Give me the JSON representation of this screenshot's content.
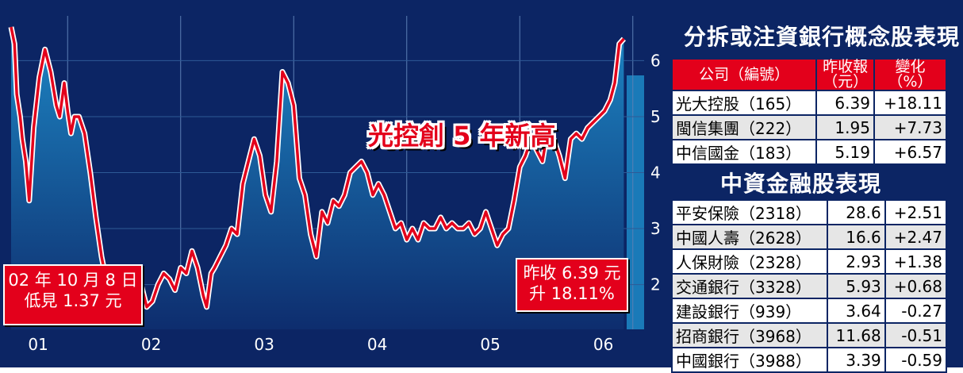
{
  "chart_data": {
    "type": "area",
    "x_ticks": [
      "01",
      "02",
      "03",
      "04",
      "05",
      "06"
    ],
    "y_ticks": [
      2,
      3,
      4,
      5,
      6
    ],
    "ylim": [
      1.2,
      6.8
    ],
    "series": [
      {
        "x": [
          2001.0,
          2001.03,
          2001.05,
          2001.08,
          2001.1,
          2001.13,
          2001.16,
          2001.2,
          2001.25,
          2001.3,
          2001.35,
          2001.4,
          2001.43,
          2001.47,
          2001.5,
          2001.53,
          2001.56,
          2001.6,
          2001.65,
          2001.7,
          2001.75,
          2001.8,
          2001.85,
          2001.9,
          2001.95,
          2002.0,
          2002.05,
          2002.1,
          2002.15,
          2002.2,
          2002.25,
          2002.3,
          2002.35,
          2002.4,
          2002.45,
          2002.5,
          2002.55,
          2002.6,
          2002.65,
          2002.7,
          2002.73,
          2002.77,
          2002.8,
          2002.85,
          2002.9,
          2002.95,
          2003.0,
          2003.05,
          2003.1,
          2003.15,
          2003.2,
          2003.25,
          2003.3,
          2003.35,
          2003.4,
          2003.45,
          2003.5,
          2003.55,
          2003.6,
          2003.65,
          2003.7,
          2003.75,
          2003.8,
          2003.85,
          2003.9,
          2003.95,
          2004.0,
          2004.05,
          2004.1,
          2004.15,
          2004.2,
          2004.25,
          2004.3,
          2004.35,
          2004.4,
          2004.45,
          2004.5,
          2004.55,
          2004.6,
          2004.65,
          2004.7,
          2004.75,
          2004.8,
          2004.85,
          2004.9,
          2004.95,
          2005.0,
          2005.05,
          2005.1,
          2005.15,
          2005.2,
          2005.25,
          2005.3,
          2005.35,
          2005.4,
          2005.45,
          2005.5,
          2005.55,
          2005.6,
          2005.65,
          2005.7,
          2005.75,
          2005.8,
          2005.85,
          2005.9,
          2005.95,
          2006.0,
          2006.05,
          2006.1,
          2006.15,
          2006.2,
          2006.25,
          2006.3,
          2006.34,
          2006.38,
          2006.42
        ],
        "values": [
          6.6,
          6.3,
          5.4,
          5.0,
          4.6,
          4.2,
          3.5,
          4.8,
          5.7,
          6.2,
          5.8,
          5.2,
          5.0,
          5.6,
          5.1,
          4.7,
          5.0,
          5.0,
          4.7,
          4.0,
          3.2,
          2.5,
          2.0,
          1.6,
          1.45,
          2.0,
          2.1,
          1.9,
          2.0,
          1.6,
          1.7,
          2.0,
          2.2,
          2.1,
          1.9,
          2.3,
          2.2,
          2.6,
          2.3,
          1.8,
          1.6,
          2.2,
          2.3,
          2.5,
          2.7,
          3.0,
          2.9,
          3.8,
          4.2,
          4.6,
          4.3,
          3.6,
          3.3,
          4.2,
          5.8,
          5.6,
          5.2,
          3.9,
          3.6,
          2.9,
          2.5,
          3.3,
          3.1,
          3.5,
          3.4,
          3.6,
          4.0,
          4.1,
          4.2,
          4.0,
          3.6,
          3.8,
          3.6,
          3.3,
          3.0,
          3.1,
          2.8,
          3.0,
          2.8,
          3.1,
          3.0,
          3.0,
          3.2,
          3.0,
          3.1,
          3.0,
          3.0,
          3.1,
          2.9,
          3.0,
          3.3,
          3.0,
          2.7,
          2.9,
          3.0,
          3.5,
          4.1,
          4.3,
          4.6,
          4.4,
          4.2,
          4.8,
          4.6,
          4.3,
          3.9,
          4.6,
          4.7,
          4.6,
          4.8,
          4.9,
          5.0,
          5.1,
          5.3,
          5.6,
          6.3,
          6.39
        ]
      }
    ]
  },
  "low_callout": {
    "line1": "02 年 10 月 8 日",
    "line2": "低見 1.37 元"
  },
  "last_callout": {
    "line1": "昨收 6.39 元",
    "line2": "升 18.11%"
  },
  "headline": "光控創 5 年新高",
  "table1": {
    "title": "分拆或注資銀行概念股表現",
    "headers": [
      "公司（編號）",
      "昨收報\n（元）",
      "變化\n（%）"
    ],
    "rows": [
      [
        "光大控股（165）",
        "6.39",
        "+18.11"
      ],
      [
        "閩信集團（222）",
        "1.95",
        "+7.73"
      ],
      [
        "中信國金（183）",
        "5.19",
        "+6.57"
      ]
    ]
  },
  "table2": {
    "title": "中資金融股表現",
    "rows": [
      [
        "平安保險（2318）",
        "28.6",
        "+2.51"
      ],
      [
        "中國人壽（2628）",
        "16.6",
        "+2.47"
      ],
      [
        "人保財險（2328）",
        "2.93",
        "+1.38"
      ],
      [
        "交通銀行（3328）",
        "5.93",
        "+0.68"
      ],
      [
        "建設銀行（939）",
        "3.64",
        "-0.27"
      ],
      [
        "招商銀行（3968）",
        "11.68",
        "-0.51"
      ],
      [
        "中國銀行（3988）",
        "3.39",
        "-0.59"
      ]
    ]
  },
  "colors": {
    "background": "#0c2564",
    "accent": "#e3001b",
    "area_top": "#1a7ab8",
    "area_bottom": "#0c2564"
  }
}
